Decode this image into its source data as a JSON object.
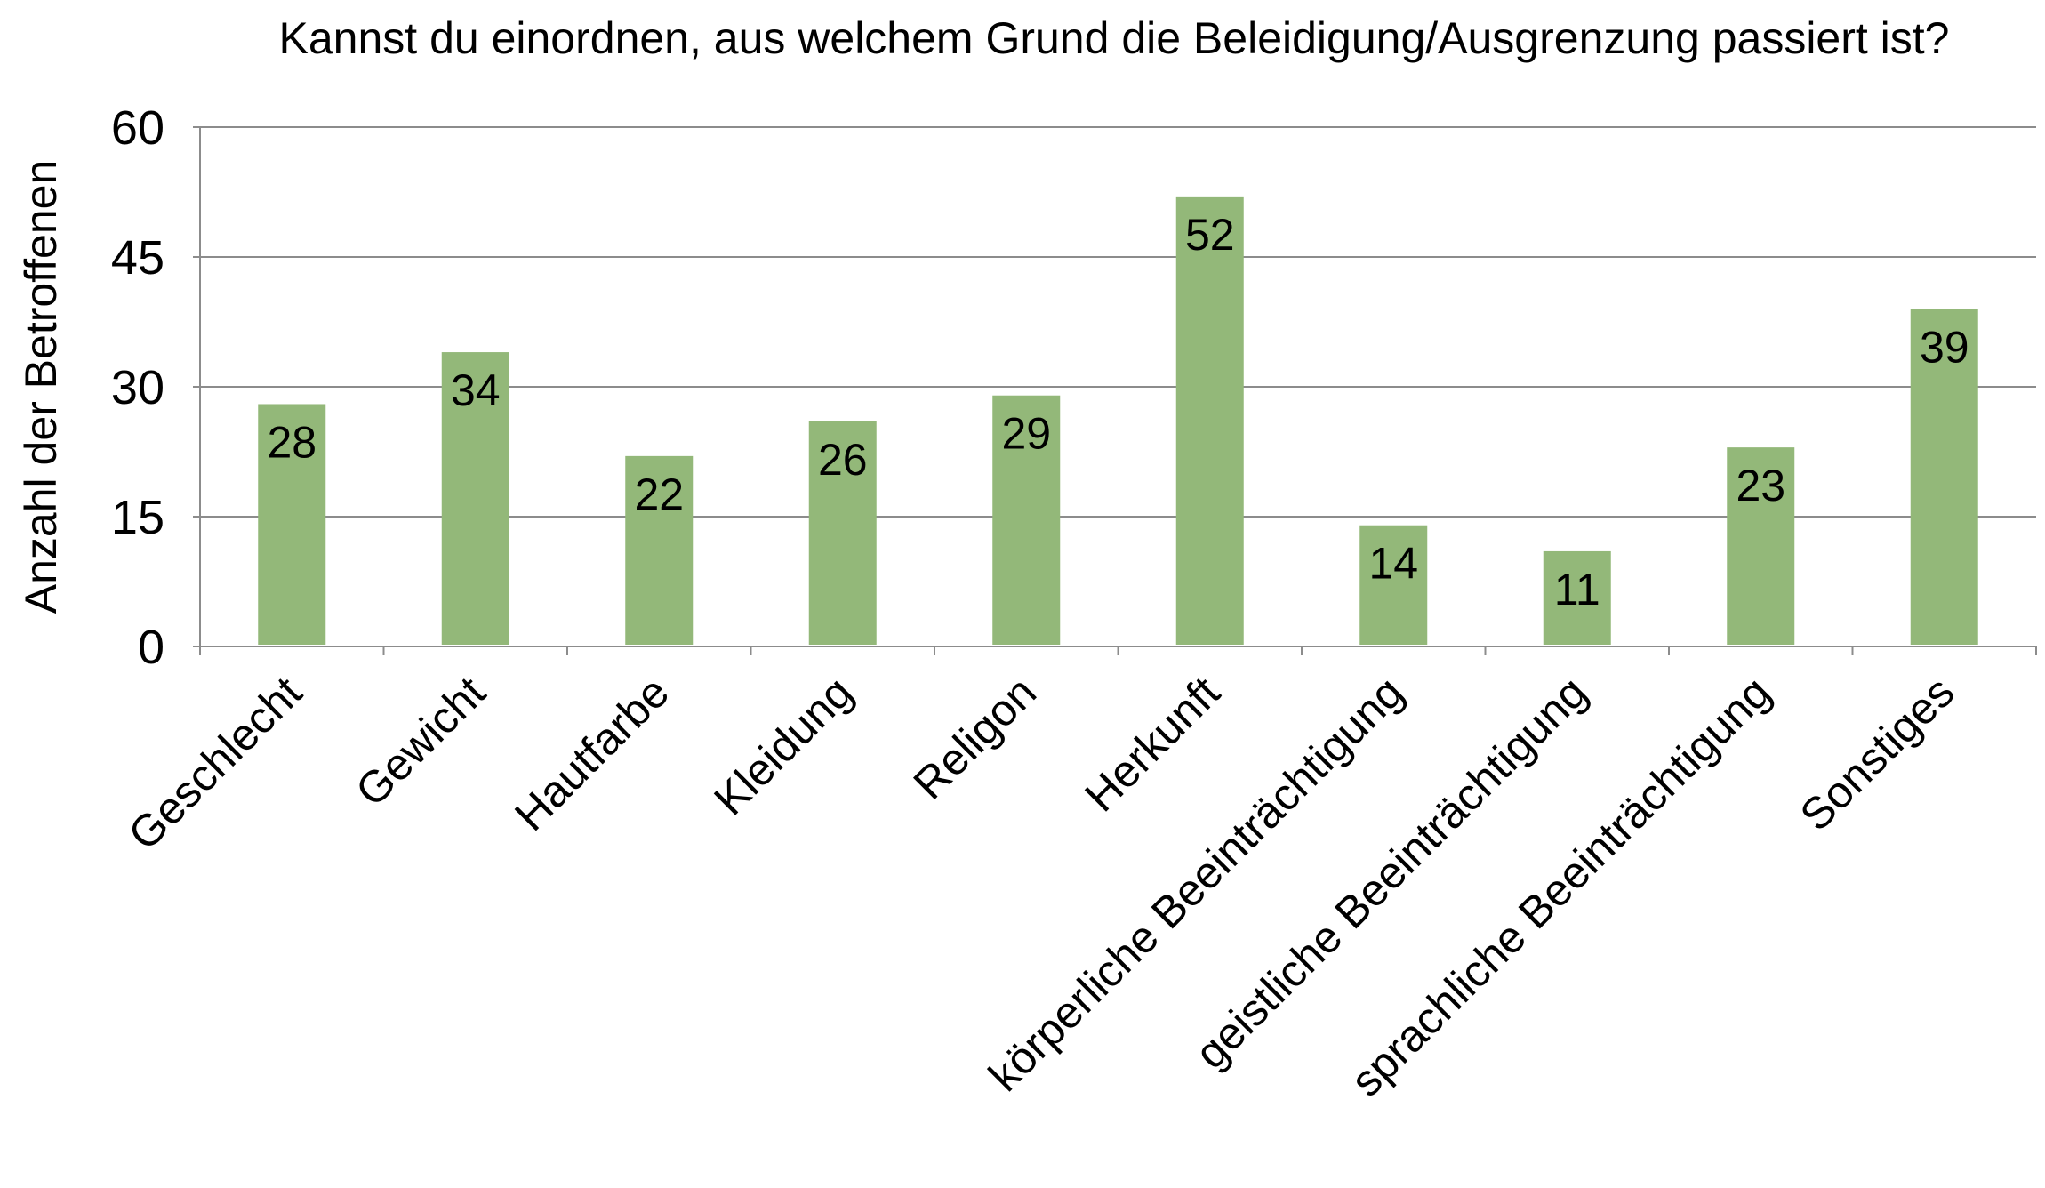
{
  "chart_data": {
    "type": "bar",
    "title": "Kannst du einordnen, aus welchem Grund die Beleidigung/Ausgrenzung passiert ist?",
    "xlabel": "",
    "ylabel": "Anzahl der Betroffenen",
    "categories": [
      "Geschlecht",
      "Gewicht",
      "Hautfarbe",
      "Kleidung",
      "Religon",
      "Herkunft",
      "körperliche Beeinträchtigung",
      "geistliche Beeinträchtigung",
      "sprachliche Beeinträchtigung",
      "Sonstiges"
    ],
    "values": [
      28,
      34,
      22,
      26,
      29,
      52,
      14,
      11,
      23,
      39
    ],
    "ylim": [
      0,
      60
    ],
    "yticks": [
      "0",
      "15",
      "30",
      "45",
      "60"
    ],
    "ytick_values": [
      0,
      15,
      30,
      45,
      60
    ],
    "grid": true,
    "data_labels": true,
    "bar_color": "#93B879",
    "grid_color": "#8c8c8c"
  }
}
